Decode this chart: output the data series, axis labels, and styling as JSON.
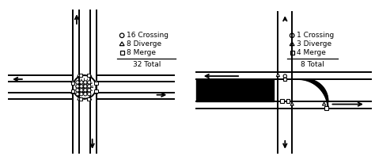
{
  "left_legend": {
    "circle": "16 Crossing",
    "triangle": "8 Diverge",
    "square": "8 Merge",
    "total": "32 Total"
  },
  "right_legend": {
    "circle": "1 Crossing",
    "triangle": "3 Diverge",
    "square": "4 Merge",
    "total": "8 Total"
  },
  "font_size": 6.5,
  "lw2": 1.4
}
